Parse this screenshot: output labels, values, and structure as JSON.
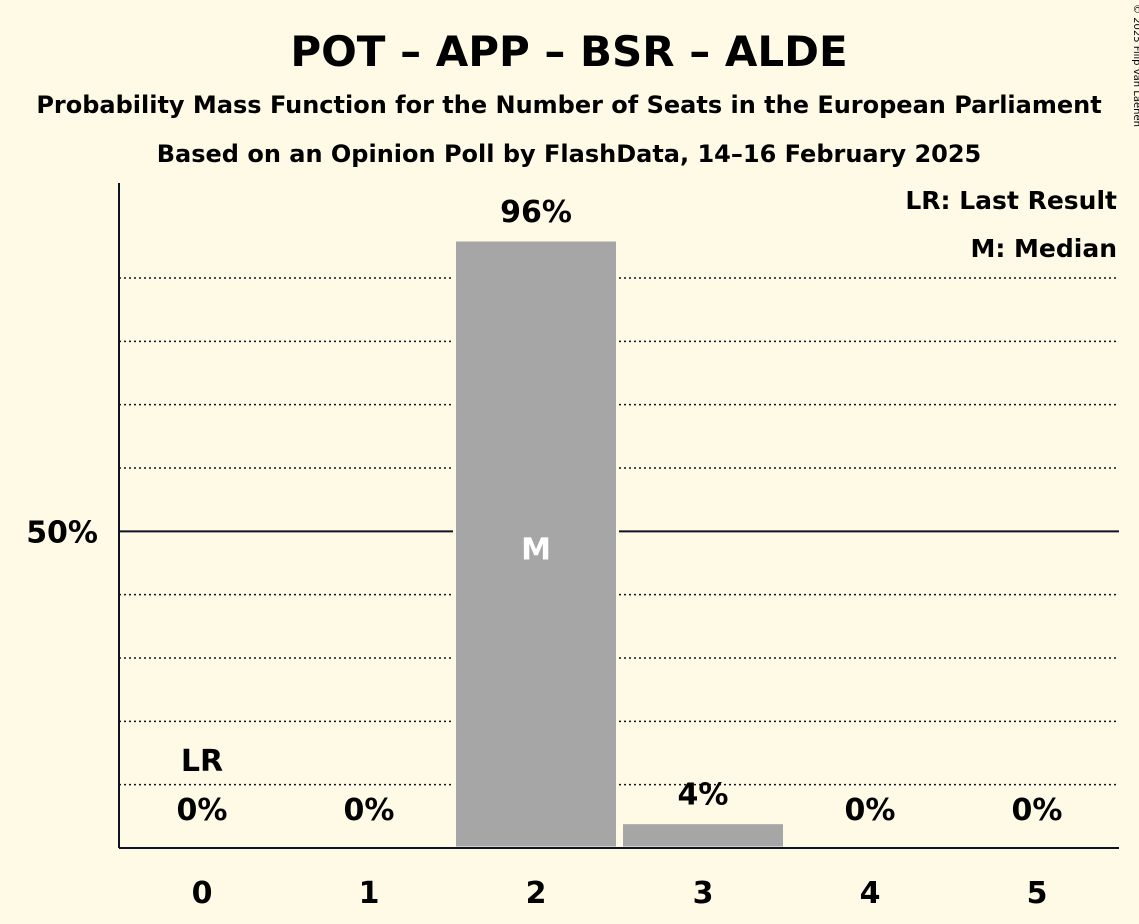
{
  "chart_data": {
    "type": "bar",
    "title": "POT – APP – BSR – ALDE",
    "subtitle": "Probability Mass Function for the Number of Seats in the European Parliament",
    "subtitle2": "Based on an Opinion Poll by FlashData, 14–16 February 2025",
    "copyright": "© 2025 Filip van Laenen",
    "categories": [
      "0",
      "1",
      "2",
      "3",
      "4",
      "5"
    ],
    "values": [
      0,
      0,
      96,
      4,
      0,
      0
    ],
    "data_labels": [
      "0%",
      "0%",
      "96%",
      "4%",
      "0%",
      "0%"
    ],
    "ylim": [
      0,
      105
    ],
    "ytick_label": "50%",
    "ytick_value": 50,
    "gridlines": [
      10,
      20,
      30,
      40,
      60,
      70,
      80,
      90
    ],
    "legend": {
      "position": "top-right",
      "items": [
        "LR: Last Result",
        "M: Median"
      ]
    },
    "last_result": {
      "category_index": 0,
      "label": "LR"
    },
    "median": {
      "category_index": 2,
      "label": "M"
    },
    "colors": {
      "bar": "#a6a6a6",
      "background": "#fefae6",
      "text": "#0b1324",
      "median_text": "#ffffff"
    }
  }
}
